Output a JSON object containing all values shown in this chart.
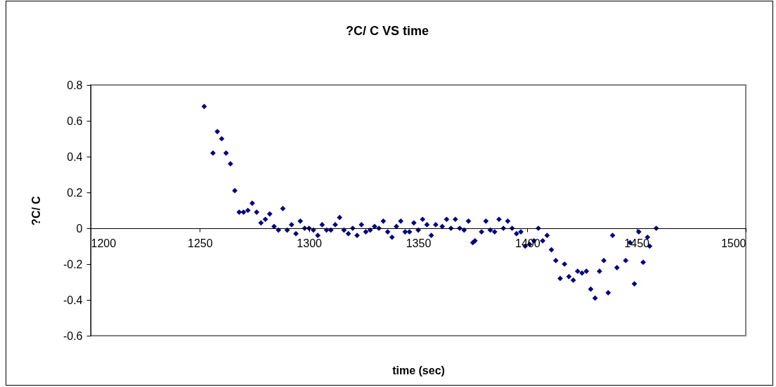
{
  "chart_data": {
    "type": "scatter",
    "title": "?C/ C VS time",
    "xlabel": "time (sec)",
    "ylabel": "?C/ C",
    "xlim": [
      1200,
      1500
    ],
    "xticks": [
      1200,
      1250,
      1300,
      1350,
      1400,
      1450,
      1500
    ],
    "ylim": [
      -0.6,
      0.8
    ],
    "yticks": [
      -0.6,
      -0.4,
      -0.2,
      0,
      0.2,
      0.4,
      0.6,
      0.8
    ],
    "grid": false,
    "marker": "diamond",
    "series": [
      {
        "color": "#000080",
        "x": [
          1252,
          1256,
          1258,
          1260,
          1262,
          1264,
          1266,
          1268,
          1270,
          1272,
          1274,
          1276,
          1278,
          1280,
          1282,
          1284,
          1286,
          1288,
          1290,
          1292,
          1294,
          1296,
          1298,
          1300,
          1302,
          1304,
          1306,
          1308,
          1310,
          1312,
          1314,
          1316,
          1318,
          1320,
          1322,
          1324,
          1326,
          1328,
          1330,
          1332,
          1334,
          1336,
          1338,
          1340,
          1342,
          1344,
          1346,
          1348,
          1350,
          1352,
          1354,
          1356,
          1358,
          1361,
          1363,
          1365,
          1367,
          1369,
          1371,
          1373,
          1375,
          1376,
          1379,
          1381,
          1383,
          1385,
          1387,
          1389,
          1391,
          1393,
          1395,
          1397,
          1399,
          1401,
          1403,
          1405,
          1407,
          1409,
          1411,
          1413,
          1415,
          1417,
          1419,
          1421,
          1423,
          1425,
          1427,
          1429,
          1431,
          1433,
          1435,
          1437,
          1439,
          1441,
          1445,
          1447,
          1449,
          1451,
          1453,
          1455,
          1456,
          1459
        ],
        "values": [
          0.68,
          0.42,
          0.54,
          0.5,
          0.42,
          0.36,
          0.21,
          0.09,
          0.09,
          0.1,
          0.14,
          0.09,
          0.03,
          0.05,
          0.08,
          0.01,
          -0.01,
          0.11,
          -0.01,
          0.02,
          -0.03,
          0.04,
          0,
          0,
          -0.01,
          -0.04,
          0.02,
          -0.01,
          -0.01,
          0.02,
          0.06,
          -0.01,
          -0.03,
          0,
          -0.04,
          0.02,
          -0.02,
          -0.01,
          0.01,
          0,
          0.04,
          -0.02,
          -0.05,
          0.01,
          0.04,
          -0.02,
          -0.02,
          0.03,
          -0.01,
          0.05,
          0.02,
          -0.04,
          0.02,
          0.01,
          0.05,
          0,
          0.05,
          0,
          -0.01,
          0.04,
          -0.08,
          -0.07,
          -0.02,
          0.04,
          -0.01,
          -0.02,
          0.05,
          0,
          0.04,
          0,
          -0.03,
          -0.02,
          -0.1,
          -0.09,
          -0.07,
          0,
          -0.07,
          -0.04,
          -0.12,
          -0.18,
          -0.28,
          -0.2,
          -0.27,
          -0.29,
          -0.24,
          -0.25,
          -0.24,
          -0.34,
          -0.39,
          -0.24,
          -0.18,
          -0.36,
          -0.04,
          -0.22,
          -0.18,
          -0.08,
          -0.31,
          -0.02,
          -0.19,
          -0.05,
          -0.1,
          0
        ]
      }
    ]
  }
}
